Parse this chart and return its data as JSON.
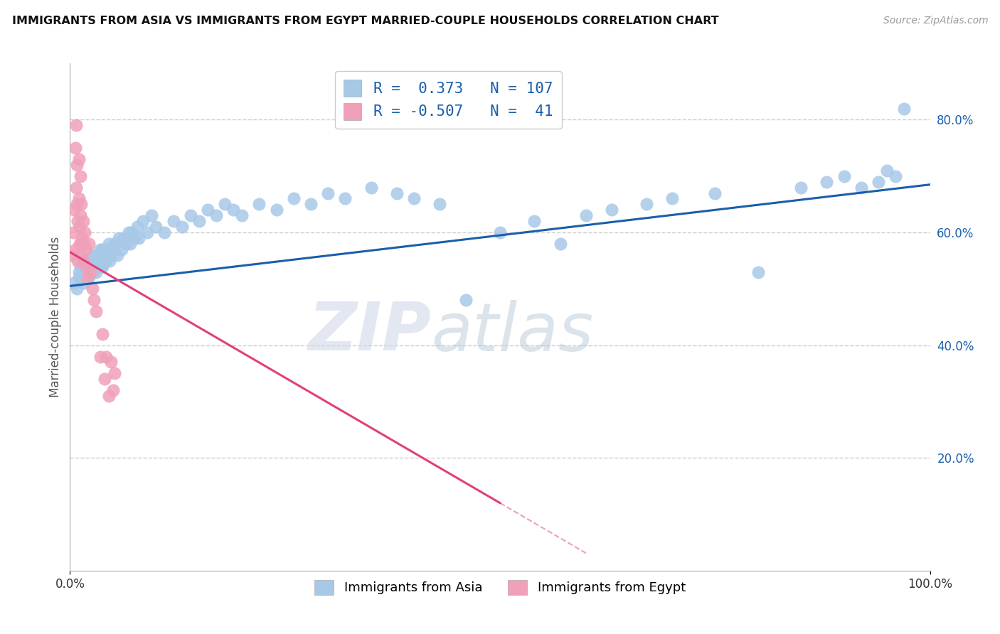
{
  "title": "IMMIGRANTS FROM ASIA VS IMMIGRANTS FROM EGYPT MARRIED-COUPLE HOUSEHOLDS CORRELATION CHART",
  "source_text": "Source: ZipAtlas.com",
  "ylabel": "Married-couple Households",
  "xlim": [
    0.0,
    1.0
  ],
  "ylim": [
    0.0,
    0.9
  ],
  "ytick_vals": [
    0.2,
    0.4,
    0.6,
    0.8
  ],
  "watermark_zip": "ZIP",
  "watermark_atlas": "atlas",
  "legend_r_asia": "0.373",
  "legend_n_asia": "107",
  "legend_r_egypt": "-0.507",
  "legend_n_egypt": "41",
  "color_asia": "#a8c8e8",
  "color_egypt": "#f0a0b8",
  "line_color_asia": "#1a5faa",
  "line_color_egypt": "#e0407a",
  "background_color": "#ffffff",
  "grid_color": "#cccccc",
  "legend_label_asia": "Immigrants from Asia",
  "legend_label_egypt": "Immigrants from Egypt",
  "asia_x": [
    0.005,
    0.008,
    0.01,
    0.01,
    0.012,
    0.013,
    0.015,
    0.015,
    0.016,
    0.017,
    0.018,
    0.018,
    0.019,
    0.02,
    0.02,
    0.021,
    0.022,
    0.022,
    0.023,
    0.023,
    0.024,
    0.025,
    0.025,
    0.026,
    0.027,
    0.027,
    0.028,
    0.028,
    0.029,
    0.03,
    0.03,
    0.031,
    0.032,
    0.033,
    0.034,
    0.035,
    0.035,
    0.036,
    0.037,
    0.038,
    0.038,
    0.039,
    0.04,
    0.04,
    0.041,
    0.042,
    0.043,
    0.044,
    0.045,
    0.046,
    0.047,
    0.048,
    0.05,
    0.052,
    0.055,
    0.057,
    0.06,
    0.062,
    0.065,
    0.068,
    0.07,
    0.072,
    0.075,
    0.078,
    0.08,
    0.085,
    0.09,
    0.095,
    0.1,
    0.11,
    0.12,
    0.13,
    0.14,
    0.15,
    0.16,
    0.17,
    0.18,
    0.19,
    0.2,
    0.22,
    0.24,
    0.26,
    0.28,
    0.3,
    0.32,
    0.35,
    0.38,
    0.4,
    0.43,
    0.46,
    0.5,
    0.54,
    0.57,
    0.6,
    0.63,
    0.67,
    0.7,
    0.75,
    0.8,
    0.85,
    0.88,
    0.9,
    0.92,
    0.94,
    0.95,
    0.96,
    0.97
  ],
  "asia_y": [
    0.51,
    0.5,
    0.52,
    0.53,
    0.54,
    0.52,
    0.53,
    0.55,
    0.51,
    0.53,
    0.52,
    0.54,
    0.53,
    0.52,
    0.54,
    0.53,
    0.55,
    0.52,
    0.53,
    0.55,
    0.54,
    0.53,
    0.55,
    0.54,
    0.56,
    0.53,
    0.54,
    0.56,
    0.55,
    0.53,
    0.55,
    0.54,
    0.55,
    0.54,
    0.56,
    0.55,
    0.57,
    0.54,
    0.55,
    0.57,
    0.54,
    0.56,
    0.55,
    0.57,
    0.56,
    0.55,
    0.57,
    0.56,
    0.58,
    0.55,
    0.57,
    0.56,
    0.57,
    0.58,
    0.56,
    0.59,
    0.57,
    0.59,
    0.58,
    0.6,
    0.58,
    0.6,
    0.59,
    0.61,
    0.59,
    0.62,
    0.6,
    0.63,
    0.61,
    0.6,
    0.62,
    0.61,
    0.63,
    0.62,
    0.64,
    0.63,
    0.65,
    0.64,
    0.63,
    0.65,
    0.64,
    0.66,
    0.65,
    0.67,
    0.66,
    0.68,
    0.67,
    0.66,
    0.65,
    0.48,
    0.6,
    0.62,
    0.58,
    0.63,
    0.64,
    0.65,
    0.66,
    0.67,
    0.53,
    0.68,
    0.69,
    0.7,
    0.68,
    0.69,
    0.71,
    0.7,
    0.82
  ],
  "egypt_x": [
    0.003,
    0.004,
    0.005,
    0.006,
    0.006,
    0.007,
    0.007,
    0.008,
    0.008,
    0.009,
    0.009,
    0.01,
    0.01,
    0.011,
    0.011,
    0.012,
    0.012,
    0.013,
    0.013,
    0.014,
    0.014,
    0.015,
    0.015,
    0.016,
    0.017,
    0.018,
    0.019,
    0.02,
    0.022,
    0.024,
    0.026,
    0.028,
    0.03,
    0.035,
    0.038,
    0.04,
    0.042,
    0.045,
    0.048,
    0.05,
    0.052
  ],
  "egypt_y": [
    0.56,
    0.6,
    0.64,
    0.57,
    0.75,
    0.79,
    0.68,
    0.65,
    0.72,
    0.62,
    0.55,
    0.66,
    0.73,
    0.61,
    0.58,
    0.63,
    0.7,
    0.58,
    0.65,
    0.59,
    0.56,
    0.62,
    0.55,
    0.58,
    0.6,
    0.57,
    0.54,
    0.52,
    0.58,
    0.53,
    0.5,
    0.48,
    0.46,
    0.38,
    0.42,
    0.34,
    0.38,
    0.31,
    0.37,
    0.32,
    0.35
  ],
  "asia_line_x0": 0.0,
  "asia_line_x1": 1.0,
  "asia_line_y0": 0.505,
  "asia_line_y1": 0.685,
  "egypt_line_x0": 0.0,
  "egypt_line_x1": 0.5,
  "egypt_line_y0": 0.565,
  "egypt_line_y1": 0.12
}
